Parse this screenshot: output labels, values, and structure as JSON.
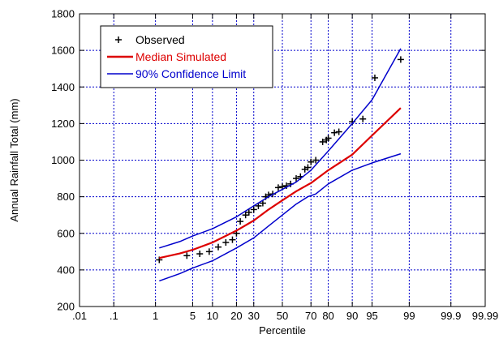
{
  "chart_data": {
    "type": "line",
    "xlabel": "Percentile",
    "ylabel": "Annual Rainfall Total (mm)",
    "x_scale": "normal-probability",
    "xlim": [
      0.01,
      99.99
    ],
    "ylim": [
      200,
      1800
    ],
    "grid": true,
    "legend_placement": "top-left",
    "x_ticks": [
      {
        "value": 0.01,
        "label": ".01"
      },
      {
        "value": 0.1,
        "label": ".1"
      },
      {
        "value": 1,
        "label": "1"
      },
      {
        "value": 5,
        "label": "5"
      },
      {
        "value": 10,
        "label": "10"
      },
      {
        "value": 20,
        "label": "20"
      },
      {
        "value": 30,
        "label": "30"
      },
      {
        "value": 50,
        "label": "50"
      },
      {
        "value": 70,
        "label": "70"
      },
      {
        "value": 80,
        "label": "80"
      },
      {
        "value": 90,
        "label": "90"
      },
      {
        "value": 95,
        "label": "95"
      },
      {
        "value": 99,
        "label": "99"
      },
      {
        "value": 99.9,
        "label": "99.9"
      },
      {
        "value": 99.99,
        "label": "99.99"
      }
    ],
    "y_ticks": [
      200,
      400,
      600,
      800,
      1000,
      1200,
      1400,
      1600,
      1800
    ],
    "colors": {
      "observed": "#000000",
      "median": "#dd0000",
      "confidence": "#0000cc",
      "grid": "#0000cc"
    },
    "series": [
      {
        "name": "Observed",
        "kind": "scatter",
        "marker": "plus",
        "points": [
          [
            1.2,
            455
          ],
          [
            4,
            478
          ],
          [
            6.5,
            488
          ],
          [
            9,
            500
          ],
          [
            12,
            525
          ],
          [
            15,
            550
          ],
          [
            18,
            565
          ],
          [
            20,
            600
          ],
          [
            22,
            665
          ],
          [
            25,
            700
          ],
          [
            27,
            715
          ],
          [
            30,
            730
          ],
          [
            33,
            750
          ],
          [
            36,
            765
          ],
          [
            38,
            800
          ],
          [
            40,
            810
          ],
          [
            43,
            815
          ],
          [
            47,
            850
          ],
          [
            50,
            855
          ],
          [
            53,
            860
          ],
          [
            56,
            870
          ],
          [
            60,
            900
          ],
          [
            63,
            910
          ],
          [
            66,
            950
          ],
          [
            68,
            960
          ],
          [
            70,
            990
          ],
          [
            73,
            1000
          ],
          [
            77,
            1100
          ],
          [
            79,
            1110
          ],
          [
            80,
            1120
          ],
          [
            83,
            1150
          ],
          [
            85,
            1155
          ],
          [
            90,
            1210
          ],
          [
            93,
            1225
          ],
          [
            95.5,
            1450
          ],
          [
            98.5,
            1550
          ]
        ]
      },
      {
        "name": "Median Simulated",
        "kind": "line",
        "points": [
          [
            1.2,
            465
          ],
          [
            3,
            490
          ],
          [
            5,
            510
          ],
          [
            10,
            550
          ],
          [
            20,
            615
          ],
          [
            30,
            670
          ],
          [
            40,
            730
          ],
          [
            50,
            780
          ],
          [
            60,
            830
          ],
          [
            70,
            875
          ],
          [
            80,
            945
          ],
          [
            90,
            1030
          ],
          [
            95,
            1135
          ],
          [
            98.5,
            1285
          ]
        ]
      },
      {
        "name": "90% Confidence Limit",
        "kind": "line",
        "segments": [
          [
            [
              1.2,
              520
            ],
            [
              3,
              555
            ],
            [
              5,
              585
            ],
            [
              10,
              625
            ],
            [
              20,
              690
            ],
            [
              30,
              750
            ],
            [
              40,
              800
            ],
            [
              50,
              840
            ],
            [
              60,
              880
            ],
            [
              70,
              945
            ],
            [
              80,
              1050
            ],
            [
              90,
              1200
            ],
            [
              95,
              1330
            ],
            [
              98.5,
              1610
            ]
          ],
          [
            [
              1.2,
              340
            ],
            [
              3,
              380
            ],
            [
              5,
              410
            ],
            [
              10,
              450
            ],
            [
              20,
              520
            ],
            [
              30,
              575
            ],
            [
              40,
              640
            ],
            [
              50,
              700
            ],
            [
              60,
              760
            ],
            [
              68,
              800
            ],
            [
              73,
              815
            ],
            [
              80,
              870
            ],
            [
              90,
              945
            ],
            [
              95,
              985
            ],
            [
              98.5,
              1035
            ]
          ]
        ]
      }
    ]
  }
}
